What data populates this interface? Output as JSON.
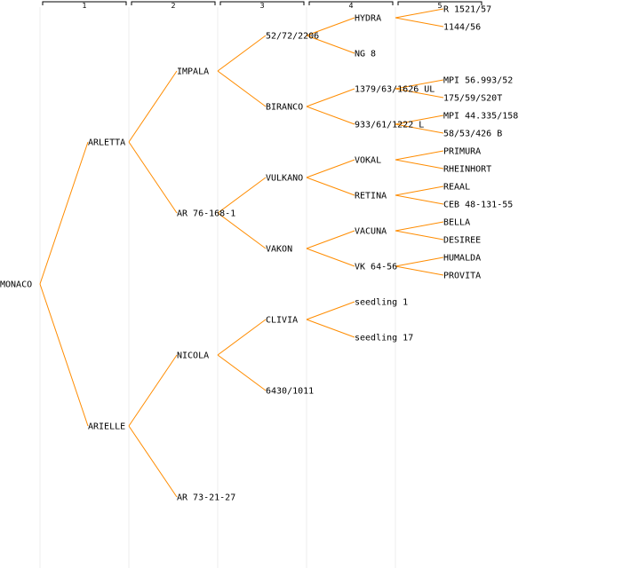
{
  "generations": [
    "1",
    "2",
    "3",
    "4",
    "5"
  ],
  "colors": {
    "edge": "#ff8c00",
    "column_line": "#eeeeee",
    "text": "#000000"
  },
  "tree": {
    "label": "MONACO",
    "children": [
      {
        "label": "ARLETTA",
        "children": [
          {
            "label": "IMPALA",
            "children": [
              {
                "label": "52/72/2206",
                "children": [
                  {
                    "label": "HYDRA",
                    "children": [
                      {
                        "label": "R 1521/57"
                      },
                      {
                        "label": "1144/56"
                      }
                    ]
                  },
                  {
                    "label": "NG 8"
                  }
                ]
              },
              {
                "label": "BIRANCO",
                "children": [
                  {
                    "label": "1379/63/1626 UL",
                    "children": [
                      {
                        "label": "MPI 56.993/52"
                      },
                      {
                        "label": "175/59/S20T"
                      }
                    ]
                  },
                  {
                    "label": "933/61/1222 L",
                    "children": [
                      {
                        "label": "MPI 44.335/158"
                      },
                      {
                        "label": "58/53/426 B"
                      }
                    ]
                  }
                ]
              }
            ]
          },
          {
            "label": "AR 76-168-1",
            "children": [
              {
                "label": "VULKANO",
                "children": [
                  {
                    "label": "VOKAL",
                    "children": [
                      {
                        "label": "PRIMURA"
                      },
                      {
                        "label": "RHEINHORT"
                      }
                    ]
                  },
                  {
                    "label": "RETINA",
                    "children": [
                      {
                        "label": "REAAL"
                      },
                      {
                        "label": "CEB 48-131-55"
                      }
                    ]
                  }
                ]
              },
              {
                "label": "VAKON",
                "children": [
                  {
                    "label": "VACUNA",
                    "children": [
                      {
                        "label": "BELLA"
                      },
                      {
                        "label": "DESIREE"
                      }
                    ]
                  },
                  {
                    "label": "VK 64-56",
                    "children": [
                      {
                        "label": "HUMALDA"
                      },
                      {
                        "label": "PROVITA"
                      }
                    ]
                  }
                ]
              }
            ]
          }
        ]
      },
      {
        "label": "ARIELLE",
        "children": [
          {
            "label": "NICOLA",
            "children": [
              {
                "label": "CLIVIA",
                "children": [
                  {
                    "label": "seedling 1"
                  },
                  {
                    "label": "seedling 17"
                  }
                ]
              },
              {
                "label": "6430/1011"
              }
            ]
          },
          {
            "label": "AR 73-21-27"
          }
        ]
      }
    ]
  }
}
